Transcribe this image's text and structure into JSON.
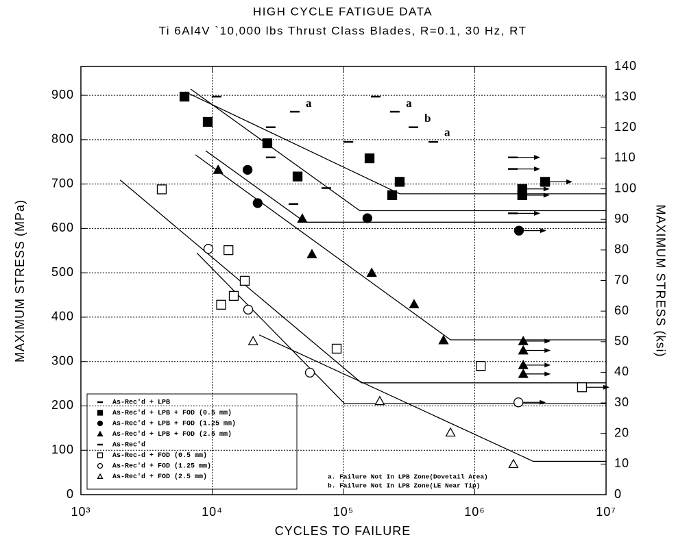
{
  "chart_data": {
    "type": "scatter",
    "title": "HIGH CYCLE FATIGUE DATA",
    "subtitle": "Ti 6Al4V `10,000 lbs Thrust Class Blades, R=0.1, 30 Hz, RT",
    "x_label": "CYCLES TO FAILURE",
    "y_label": "MAXIMUM STRESS (MPa)",
    "y2_label": "MAXIMUM STRESS (ksi)",
    "log_x": true,
    "grid": true,
    "xlim": [
      1000,
      10000000
    ],
    "xticks": [
      {
        "value": 1000,
        "label": "10³"
      },
      {
        "value": 10000,
        "label": "10⁴"
      },
      {
        "value": 100000,
        "label": "10⁵"
      },
      {
        "value": 1000000,
        "label": "10⁶"
      },
      {
        "value": 10000000,
        "label": "10⁷"
      }
    ],
    "ylim": [
      0,
      965
    ],
    "yticks": [
      0,
      100,
      200,
      300,
      400,
      500,
      600,
      700,
      800,
      900
    ],
    "y2lim": [
      0,
      140
    ],
    "y2ticks": [
      0,
      10,
      20,
      30,
      40,
      50,
      60,
      70,
      80,
      90,
      100,
      110,
      120,
      130,
      140
    ],
    "legend": "lower left",
    "series": [
      {
        "name": "As-Rec'd + LPB",
        "color": "#000000",
        "marker": "dash",
        "filled": true,
        "x": [
          10800,
          27900,
          42600,
          27900,
          41600,
          74000
        ],
        "values": [
          897,
          828,
          863,
          760,
          655,
          691
        ],
        "runout": []
      },
      {
        "name": "As-Rec'd + LPB + FOD (0.5 mm)",
        "color": "#000000",
        "marker": "square",
        "filled": true,
        "x": [
          6150,
          9250,
          26300,
          44700,
          158000,
          268000,
          235000,
          2300000,
          2300000,
          3430000
        ],
        "values": [
          897,
          840,
          792,
          717,
          758,
          705,
          675,
          675,
          689,
          705
        ],
        "runout": [
          7,
          8,
          9
        ]
      },
      {
        "name": "As-Rec'd + LPB + FOD (1.25 mm)",
        "color": "#000000",
        "marker": "circle",
        "filled": true,
        "x": [
          18600,
          22200,
          152000,
          2170000
        ],
        "values": [
          732,
          657,
          623,
          595
        ],
        "runout": [
          3
        ]
      },
      {
        "name": "As-Rec'd + LPB + FOD (2.5 mm)",
        "color": "#000000",
        "marker": "triangle",
        "filled": true,
        "x": [
          11100,
          48600,
          57500,
          164000,
          345000,
          578000,
          2340000,
          2340000,
          2340000,
          2340000
        ],
        "values": [
          732,
          622,
          542,
          500,
          429,
          348,
          346,
          325,
          292,
          272
        ],
        "runout": [
          6,
          7,
          8,
          9
        ]
      },
      {
        "name": "As-Rec'd",
        "color": "#000000",
        "marker": "dash",
        "filled": true,
        "x": [
          109000,
          176000,
          246000,
          341000,
          483000,
          1950000,
          1950000,
          1950000
        ],
        "values": [
          795,
          897,
          863,
          828,
          795,
          760,
          734,
          634
        ],
        "runout": [
          5,
          6,
          7
        ]
      },
      {
        "name": "As-Rec-d + FOD (0.5 mm)",
        "color": "#000000",
        "marker": "square",
        "filled": false,
        "x": [
          4130,
          13300,
          17700,
          14600,
          11700,
          88700,
          1110000,
          6560000
        ],
        "values": [
          688,
          551,
          482,
          448,
          428,
          329,
          290,
          242
        ],
        "runout": [
          7
        ]
      },
      {
        "name": "As-Rec'd + FOD (1.25 mm)",
        "color": "#000000",
        "marker": "circle",
        "filled": false,
        "x": [
          9360,
          18800,
          55500,
          2150000
        ],
        "values": [
          554,
          417,
          275,
          208
        ],
        "runout": [
          3
        ]
      },
      {
        "name": "As-Rec'd + FOD (2.5 mm)",
        "color": "#000000",
        "marker": "triangle",
        "filled": false,
        "x": [
          20500,
          189000,
          653000,
          1970000
        ],
        "values": [
          346,
          211,
          140,
          69
        ],
        "runout": []
      }
    ],
    "fit_lines": [
      {
        "x": [
          6220,
          268000,
          10000000
        ],
        "values": [
          908,
          678,
          678
        ]
      },
      {
        "x": [
          6850,
          133000,
          10000000
        ],
        "values": [
          914,
          640,
          640
        ]
      },
      {
        "x": [
          8920,
          51000,
          10000000
        ],
        "values": [
          775,
          614,
          614
        ]
      },
      {
        "x": [
          7450,
          653000,
          10000000
        ],
        "values": [
          766,
          349,
          349
        ]
      },
      {
        "x": [
          1990,
          137000,
          10000000
        ],
        "values": [
          709,
          252,
          252
        ]
      },
      {
        "x": [
          7630,
          102000,
          10000000
        ],
        "values": [
          545,
          205,
          205
        ]
      },
      {
        "x": [
          22800,
          2790000,
          10000000
        ],
        "values": [
          360,
          75,
          75
        ]
      }
    ],
    "annotations": [
      {
        "text": "a",
        "x": 51600,
        "y": 880
      },
      {
        "text": "a",
        "x": 299000,
        "y": 880
      },
      {
        "text": "b",
        "x": 413000,
        "y": 846
      },
      {
        "text": "a",
        "x": 586000,
        "y": 814
      }
    ],
    "notes": [
      "a. Failure Not In LPB Zone(Dovetail Area)",
      "b. Failure Not In LPB Zone(LE Near Tip)"
    ]
  }
}
